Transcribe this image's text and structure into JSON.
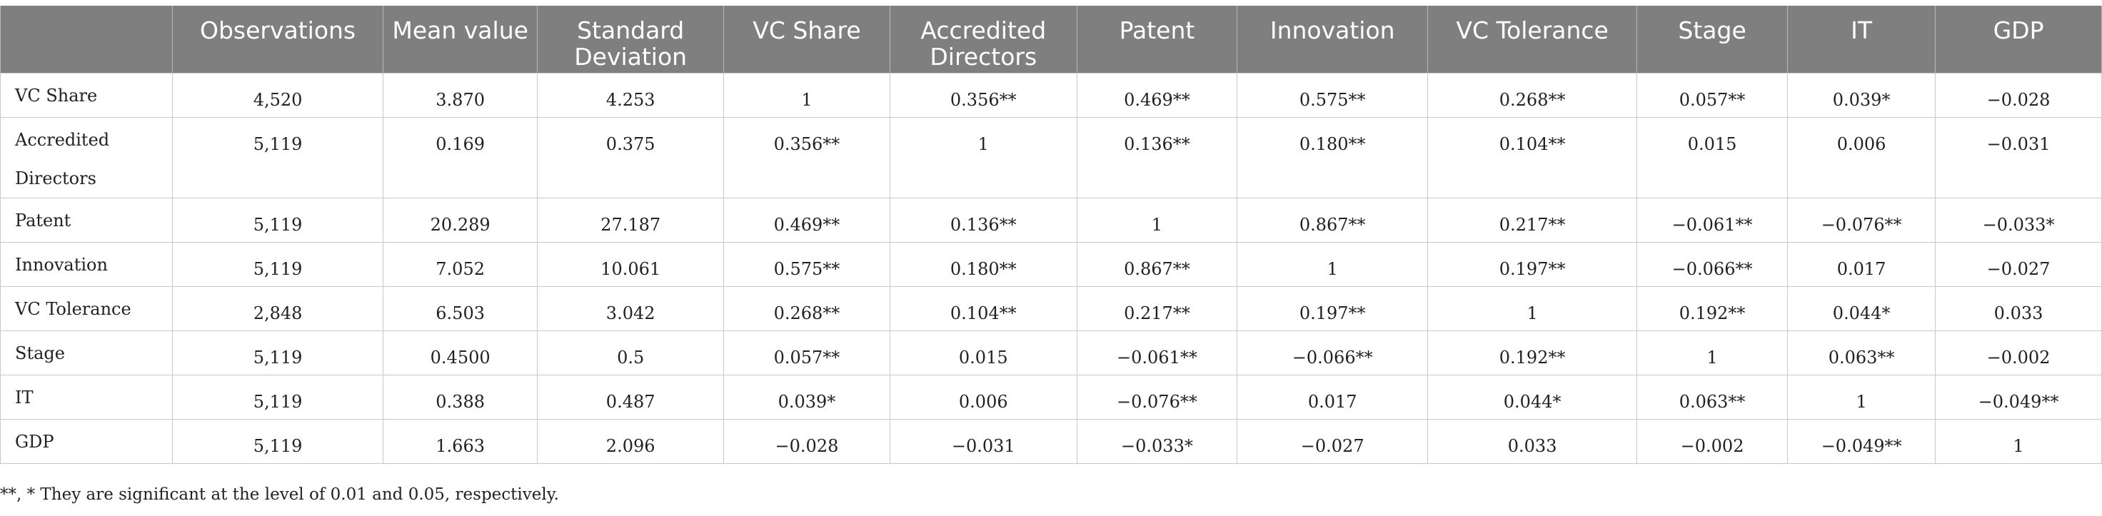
{
  "table": {
    "columns": [
      "",
      "Observations",
      "Mean value",
      "Standard Deviation",
      "VC Share",
      "Accredited Directors",
      "Patent",
      "Innovation",
      "VC Tolerance",
      "Stage",
      "IT",
      "GDP"
    ],
    "rows": [
      {
        "label": "VC Share",
        "cells": [
          "4,520",
          "3.870",
          "4.253",
          "1",
          "0.356**",
          "0.469**",
          "0.575**",
          "0.268**",
          "0.057**",
          "0.039*",
          "−0.028"
        ]
      },
      {
        "label": "Accredited Directors",
        "cells": [
          "5,119",
          "0.169",
          "0.375",
          "0.356**",
          "1",
          "0.136**",
          "0.180**",
          "0.104**",
          "0.015",
          "0.006",
          "−0.031"
        ]
      },
      {
        "label": "Patent",
        "cells": [
          "5,119",
          "20.289",
          "27.187",
          "0.469**",
          "0.136**",
          "1",
          "0.867**",
          "0.217**",
          "−0.061**",
          "−0.076**",
          "−0.033*"
        ]
      },
      {
        "label": "Innovation",
        "cells": [
          "5,119",
          "7.052",
          "10.061",
          "0.575**",
          "0.180**",
          "0.867**",
          "1",
          "0.197**",
          "−0.066**",
          "0.017",
          "−0.027"
        ]
      },
      {
        "label": "VC Tolerance",
        "cells": [
          "2,848",
          "6.503",
          "3.042",
          "0.268**",
          "0.104**",
          "0.217**",
          "0.197**",
          "1",
          "0.192**",
          "0.044*",
          "0.033"
        ]
      },
      {
        "label": "Stage",
        "cells": [
          "5,119",
          "0.4500",
          "0.5",
          "0.057**",
          "0.015",
          "−0.061**",
          "−0.066**",
          "0.192**",
          "1",
          "0.063**",
          "−0.002"
        ]
      },
      {
        "label": "IT",
        "cells": [
          "5,119",
          "0.388",
          "0.487",
          "0.039*",
          "0.006",
          "−0.076**",
          "0.017",
          "0.044*",
          "0.063**",
          "1",
          "−0.049**"
        ]
      },
      {
        "label": "GDP",
        "cells": [
          "5,119",
          "1.663",
          "2.096",
          "−0.028",
          "−0.031",
          "−0.033*",
          "−0.027",
          "0.033",
          "−0.002",
          "−0.049**",
          "1"
        ]
      }
    ]
  },
  "footnote": "**, * They are significant at the level of 0.01 and 0.05, respectively.",
  "colors": {
    "header_bg": "#7f7f7f",
    "header_text": "#ffffff",
    "grid": "#c8c8c8"
  }
}
